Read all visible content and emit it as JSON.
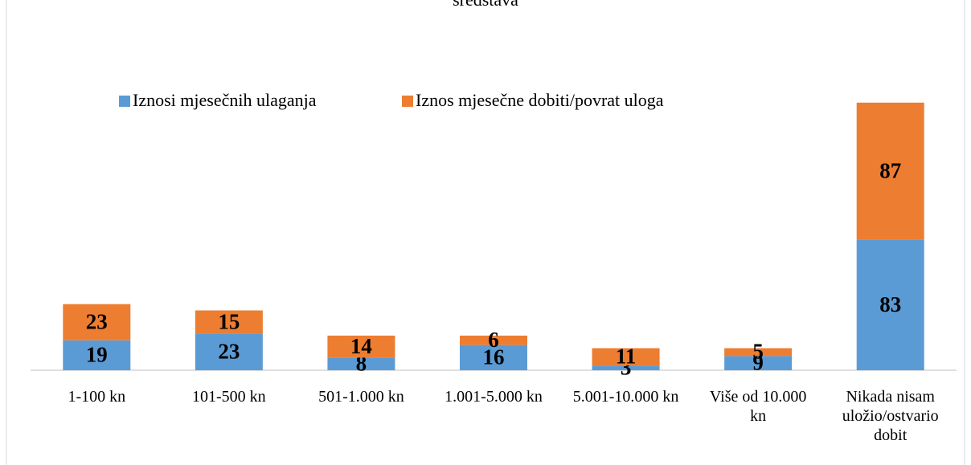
{
  "chart_data": {
    "type": "stacked_bar",
    "title": "sredstava",
    "categories": [
      "1-100 kn",
      "101-500 kn",
      "501-1.000 kn",
      "1.001-5.000 kn",
      "5.001-10.000 kn",
      "Više od 10.000 kn",
      "Nikada nisam uložio/ostvario dobit"
    ],
    "series": [
      {
        "name": "Iznosi mjesečnih ulaganja",
        "color": "#5b9bd5",
        "values": [
          19,
          23,
          8,
          16,
          3,
          9,
          83
        ]
      },
      {
        "name": "Iznos mjesečne dobiti/povrat uloga",
        "color": "#ed7d31",
        "values": [
          23,
          15,
          14,
          6,
          11,
          5,
          87
        ]
      }
    ]
  }
}
